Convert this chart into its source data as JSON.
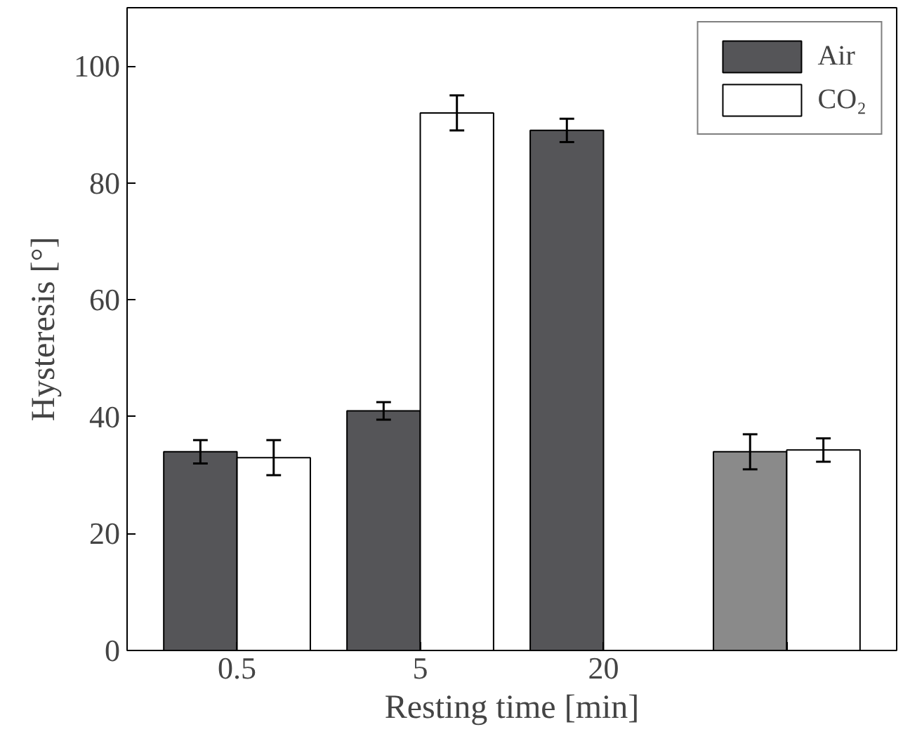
{
  "chart_data": {
    "type": "bar",
    "xlabel": "Resting time [min]",
    "ylabel": "Hysteresis [°]",
    "categories": [
      "0.5",
      "5",
      "20",
      null
    ],
    "series": [
      {
        "name": "Air",
        "colors": [
          "#555558",
          "#555558",
          "#555558",
          "#8a8a8a"
        ],
        "values": [
          34,
          41,
          89,
          34
        ],
        "errors": [
          2,
          1.5,
          2,
          3
        ]
      },
      {
        "name": "CO₂",
        "color": "#ffffff",
        "values": [
          33,
          92,
          null,
          34.3
        ],
        "errors": [
          3,
          3,
          null,
          2
        ]
      }
    ],
    "ylim": [
      0,
      110
    ],
    "yticks": [
      0,
      20,
      40,
      60,
      80,
      100
    ],
    "grid": false,
    "legend": "top right"
  }
}
